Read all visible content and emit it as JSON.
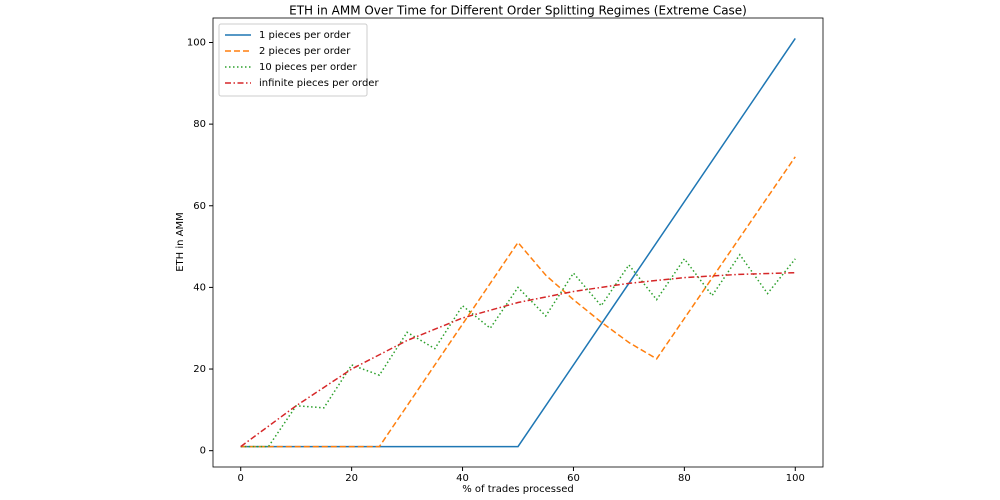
{
  "chart_data": {
    "type": "line",
    "title": "ETH in AMM Over Time for Different Order Splitting Regimes (Extreme Case)",
    "x_label": "% of trades processed",
    "y_label": "ETH in AMM",
    "xlim": [
      -5,
      105
    ],
    "ylim": [
      -4,
      106
    ],
    "xticks": [
      0,
      20,
      40,
      60,
      80,
      100
    ],
    "yticks": [
      0,
      20,
      40,
      60,
      80,
      100
    ],
    "legend": "upper left",
    "series": [
      {
        "name": "1 pieces per order",
        "color": "#1f77b4",
        "linestyle": "solid",
        "x": [
          0,
          50,
          100
        ],
        "values": [
          1,
          1,
          101
        ]
      },
      {
        "name": "2 pieces per order",
        "color": "#ff7f0e",
        "linestyle": "dashed",
        "x": [
          0,
          25,
          50,
          55,
          60,
          65,
          70,
          75,
          100
        ],
        "values": [
          1,
          1,
          51,
          43,
          37,
          31.5,
          26.5,
          22.5,
          72
        ]
      },
      {
        "name": "10 pieces per order",
        "color": "#2ca02c",
        "linestyle": "dotted",
        "x": [
          0,
          5,
          10,
          15,
          20,
          25,
          30,
          35,
          40,
          45,
          50,
          55,
          60,
          65,
          70,
          75,
          80,
          85,
          90,
          95,
          100
        ],
        "values": [
          1,
          1,
          11,
          10.5,
          21,
          18.5,
          29,
          25,
          35.5,
          30,
          40,
          33,
          43.5,
          35.5,
          45.5,
          37,
          47,
          38,
          48,
          38.5,
          47
        ]
      },
      {
        "name": "infinite pieces per order",
        "color": "#d62728",
        "linestyle": "dashdot",
        "x": [
          0,
          10,
          20,
          30,
          40,
          50,
          60,
          70,
          80,
          90,
          100
        ],
        "values": [
          1,
          11,
          20,
          27,
          32.5,
          36.3,
          39,
          41,
          42.4,
          43.2,
          43.6
        ]
      }
    ]
  }
}
